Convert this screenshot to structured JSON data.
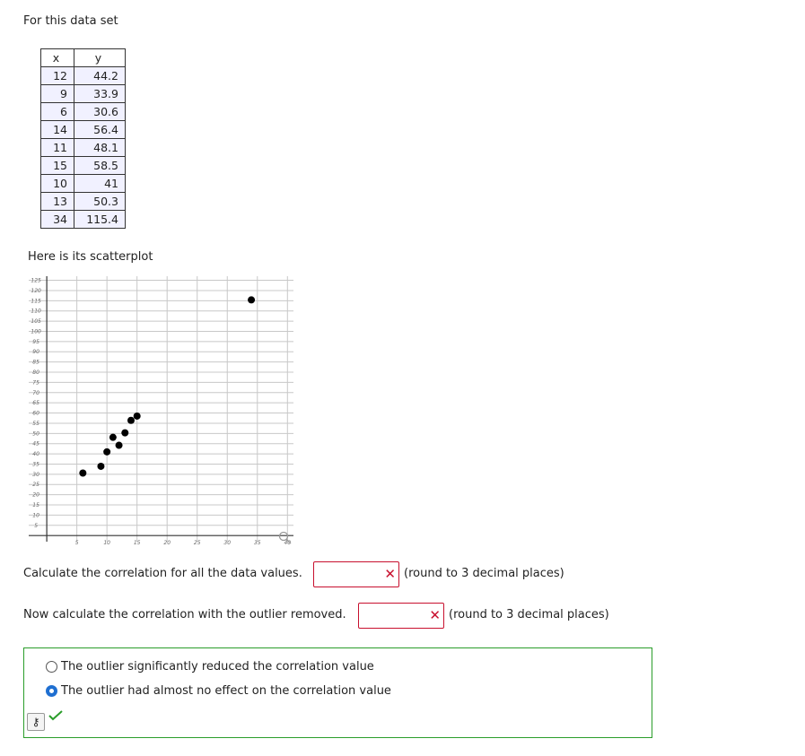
{
  "intro": "For this data set",
  "table": {
    "headers": [
      "x",
      "y"
    ],
    "rows": [
      [
        12,
        44.2
      ],
      [
        9,
        33.9
      ],
      [
        6,
        30.6
      ],
      [
        14,
        56.4
      ],
      [
        11,
        48.1
      ],
      [
        15,
        58.5
      ],
      [
        10,
        41
      ],
      [
        13,
        50.3
      ],
      [
        34,
        115.4
      ]
    ]
  },
  "scatter_intro": "Here is its scatterplot",
  "chart_data": {
    "type": "scatter",
    "x": [
      12,
      9,
      6,
      14,
      11,
      15,
      10,
      13,
      34
    ],
    "y": [
      44.2,
      33.9,
      30.6,
      56.4,
      48.1,
      58.5,
      41,
      50.3,
      115.4
    ],
    "color": "#000000",
    "xlim": [
      -3,
      41
    ],
    "ylim": [
      -3,
      127
    ],
    "xticks": [
      5,
      10,
      15,
      20,
      25,
      30,
      35,
      40
    ],
    "yticks": [
      5,
      10,
      15,
      20,
      25,
      30,
      35,
      40,
      45,
      50,
      55,
      60,
      65,
      70,
      75,
      80,
      85,
      90,
      95,
      100,
      105,
      110,
      115,
      120,
      125
    ],
    "grid": true
  },
  "questions": [
    {
      "text": "Calculate the correlation for all the data values.",
      "hint": "(round to 3 decimal places)"
    },
    {
      "text": "Now calculate the correlation with the outlier removed.",
      "hint": "(round to 3 decimal places)"
    }
  ],
  "options": [
    {
      "label": "The outlier significantly reduced the correlation value",
      "selected": false
    },
    {
      "label": "The outlier had almost no effect on the correlation value",
      "selected": true
    }
  ]
}
